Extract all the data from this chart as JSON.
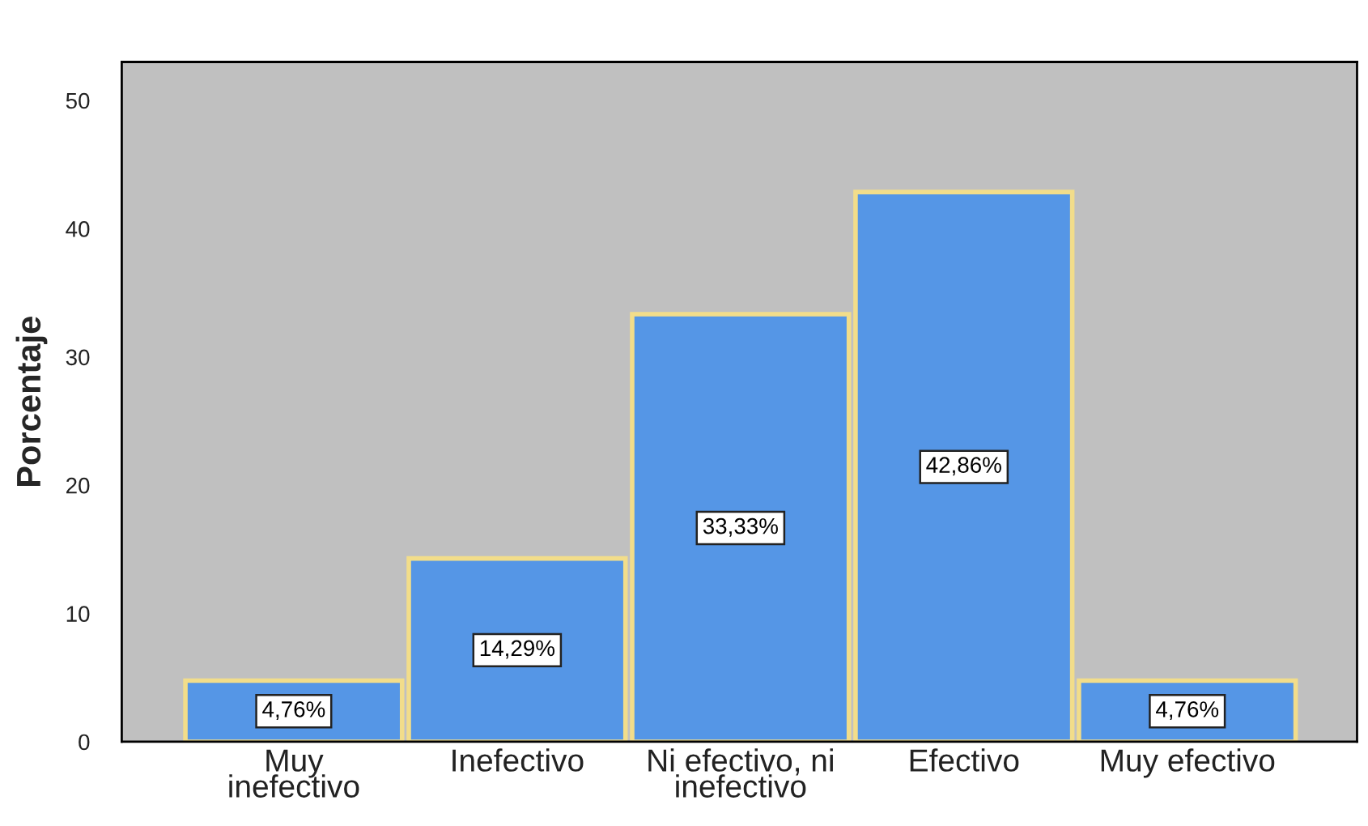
{
  "chart_data": {
    "type": "bar",
    "ylabel": "Porcentaje",
    "categories": [
      "Muy\ninefectivo",
      "Inefectivo",
      "Ni efectivo, ni\ninefectivo",
      "Efectivo",
      "Muy efectivo"
    ],
    "values": [
      4.76,
      14.29,
      33.33,
      42.86,
      4.76
    ],
    "value_labels": [
      "4,76%",
      "14,29%",
      "33,33%",
      "42,86%",
      "4,76%"
    ],
    "color": "#5596e6",
    "ylim": [
      0,
      53
    ],
    "yticks": [
      0,
      10,
      20,
      30,
      40,
      50
    ]
  }
}
